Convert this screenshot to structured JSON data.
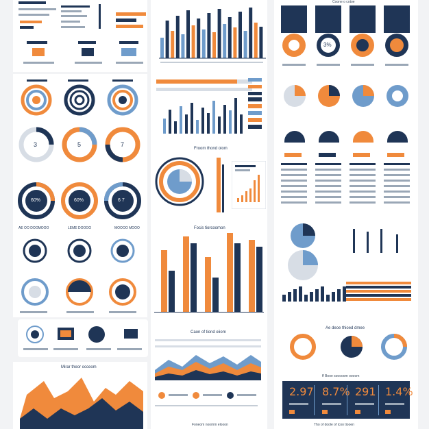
{
  "colors": {
    "navy": "#1f3556",
    "orange": "#f08a3c",
    "blue": "#6f9ccb",
    "light": "#d7dde5",
    "bg": "#f2f3f5"
  },
  "left": {
    "ring_headings": [
      "AE OO DOOMOOO",
      "LEME DOOOO",
      "MOOOO MOOO"
    ],
    "donut_numbers": [
      "3",
      "5",
      "7"
    ],
    "percent_labels": [
      "60%",
      "60%",
      "6 7"
    ],
    "area_title": "Mirar theor occeom"
  },
  "middle": {
    "radial_title": "Froom thond oiom",
    "bar_title": "Focis tiorcoomon",
    "wave_title": "Caon of tiond eiiom",
    "footer": "Foneom noomm elooon"
  },
  "right": {
    "top_title": "Coone o cotoe",
    "hex_numbers": [
      "3%",
      ""
    ],
    "stacked_title": "Ae deoe thioed dmee",
    "panel_title": "ff Booe sooooom oooom",
    "stats": [
      "2.97",
      "8.7%",
      "291",
      "1.4%"
    ],
    "footer": "Tho of doole of icoo tiooen"
  }
}
